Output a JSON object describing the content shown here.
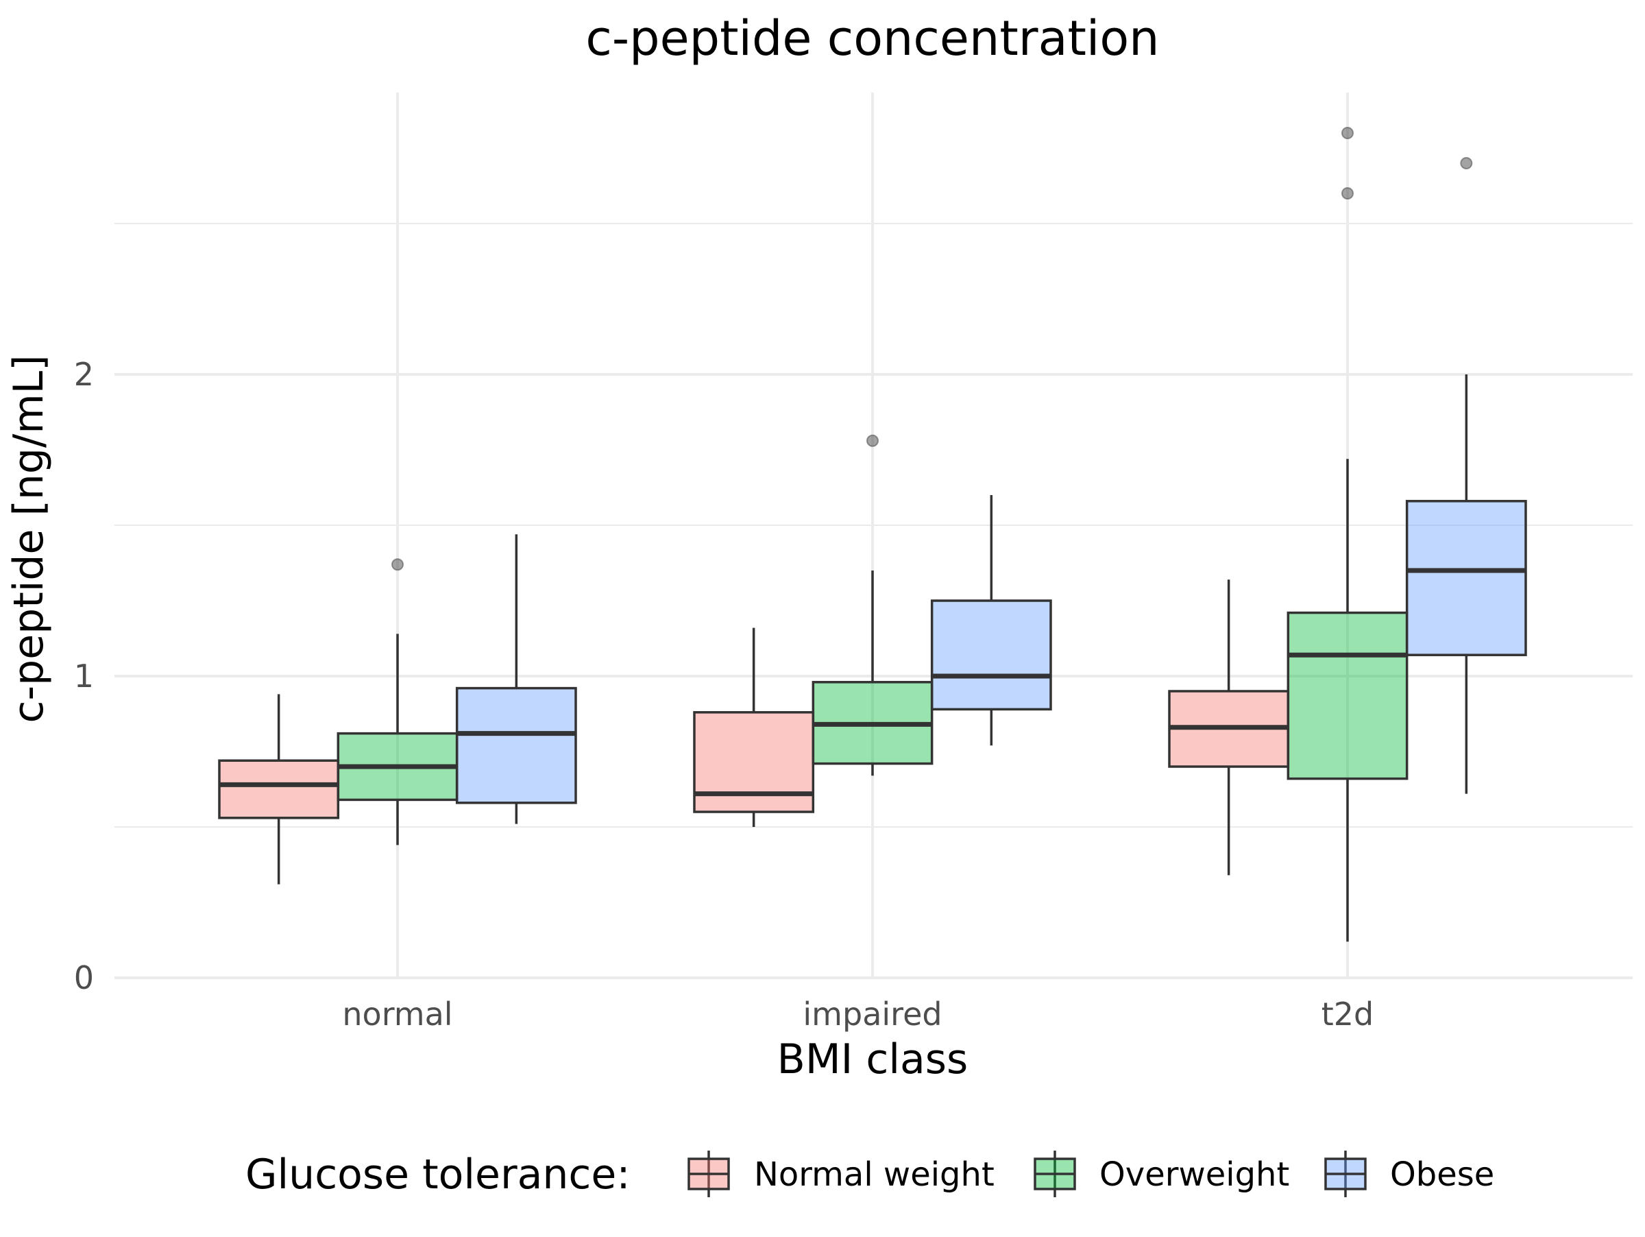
{
  "chart_data": {
    "type": "box",
    "title": "c-peptide concentration",
    "xlabel": "BMI class",
    "ylabel": "c-peptide [ng/mL]",
    "categories": [
      "normal",
      "impaired",
      "t2d"
    ],
    "ylim": [
      0,
      2.94
    ],
    "yticks": [
      0,
      1,
      2
    ],
    "grid": true,
    "legend": {
      "title": "Glucose tolerance:",
      "position": "bottom"
    },
    "series": [
      {
        "name": "Normal weight",
        "color": "#F8766D",
        "boxes": [
          {
            "category": "normal",
            "whisker_low": 0.31,
            "q1": 0.53,
            "median": 0.64,
            "q3": 0.72,
            "whisker_high": 0.94,
            "outliers": []
          },
          {
            "category": "impaired",
            "whisker_low": 0.5,
            "q1": 0.55,
            "median": 0.61,
            "q3": 0.88,
            "whisker_high": 1.16,
            "outliers": []
          },
          {
            "category": "t2d",
            "whisker_low": 0.34,
            "q1": 0.7,
            "median": 0.83,
            "q3": 0.95,
            "whisker_high": 1.32,
            "outliers": []
          }
        ]
      },
      {
        "name": "Overweight",
        "color": "#00BA38",
        "boxes": [
          {
            "category": "normal",
            "whisker_low": 0.44,
            "q1": 0.59,
            "median": 0.7,
            "q3": 0.81,
            "whisker_high": 1.14,
            "outliers": [
              1.37
            ]
          },
          {
            "category": "impaired",
            "whisker_low": 0.67,
            "q1": 0.71,
            "median": 0.84,
            "q3": 0.98,
            "whisker_high": 1.35,
            "outliers": [
              1.78
            ]
          },
          {
            "category": "t2d",
            "whisker_low": 0.12,
            "q1": 0.66,
            "median": 1.07,
            "q3": 1.21,
            "whisker_high": 1.72,
            "outliers": [
              2.6,
              2.8
            ]
          }
        ]
      },
      {
        "name": "Obese",
        "color": "#619CFF",
        "boxes": [
          {
            "category": "normal",
            "whisker_low": 0.51,
            "q1": 0.58,
            "median": 0.81,
            "q3": 0.96,
            "whisker_high": 1.47,
            "outliers": []
          },
          {
            "category": "impaired",
            "whisker_low": 0.77,
            "q1": 0.89,
            "median": 1.0,
            "q3": 1.25,
            "whisker_high": 1.6,
            "outliers": []
          },
          {
            "category": "t2d",
            "whisker_low": 0.61,
            "q1": 1.07,
            "median": 1.35,
            "q3": 1.58,
            "whisker_high": 2.0,
            "outliers": [
              2.7
            ]
          }
        ]
      }
    ]
  }
}
